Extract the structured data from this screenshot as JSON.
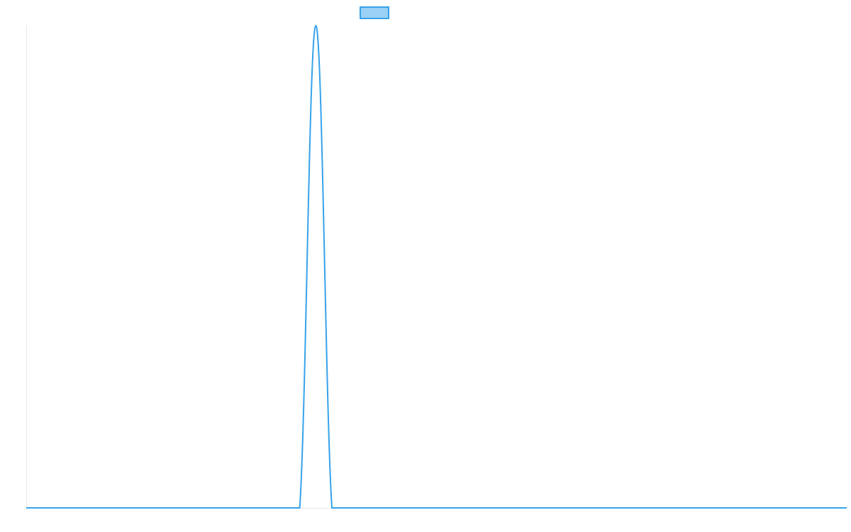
{
  "chart_data": {
    "type": "line",
    "title": "",
    "xlabel": "",
    "ylabel": "",
    "grid": false,
    "legend": "top-center",
    "x": [
      0,
      1,
      2,
      3,
      4,
      5,
      6,
      7,
      8,
      9,
      10,
      11,
      12,
      13,
      14,
      15,
      16,
      17,
      18,
      19,
      20,
      21,
      22,
      23,
      24,
      25,
      26,
      27,
      28,
      29,
      30,
      31,
      32,
      33,
      34,
      35,
      36,
      37,
      38,
      39,
      40,
      41,
      42,
      43,
      44,
      45,
      46,
      47,
      48,
      49,
      50,
      51
    ],
    "xlim": [
      0,
      51
    ],
    "ylim": [
      0,
      1
    ],
    "series": [
      {
        "name": "",
        "color": "#36a2eb",
        "fill": "#9ad0f5",
        "values": [
          0,
          0,
          0,
          0,
          0,
          0,
          0,
          0,
          0,
          0,
          0,
          0,
          0,
          0,
          0,
          0,
          0,
          0,
          1,
          0,
          0,
          0,
          0,
          0,
          0,
          0,
          0,
          0,
          0,
          0,
          0,
          0,
          0,
          0,
          0,
          0,
          0,
          0,
          0,
          0,
          0,
          0,
          0,
          0,
          0,
          0,
          0,
          0,
          0,
          0,
          0,
          0
        ]
      }
    ]
  }
}
